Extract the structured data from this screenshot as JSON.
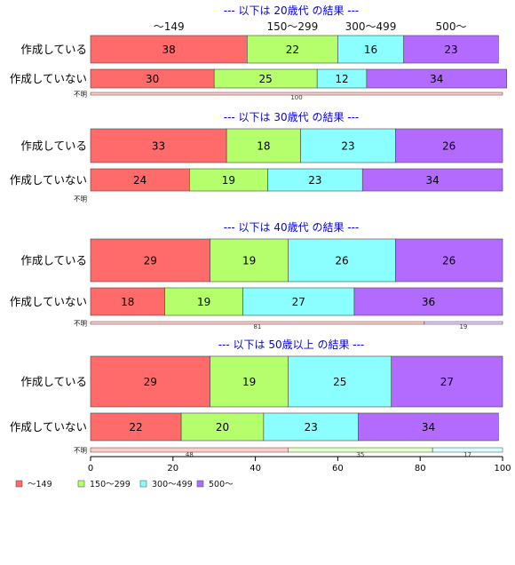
{
  "chart_data": {
    "type": "bar",
    "orientation": "horizontal",
    "stacked": true,
    "percent": true,
    "xlim": [
      0,
      100
    ],
    "xticks": [
      0,
      20,
      40,
      60,
      80,
      100
    ],
    "category_header": [
      "～149",
      "150～299",
      "300～499",
      "500～"
    ],
    "series": [
      {
        "name": "～149",
        "color": "#ff6b6b"
      },
      {
        "name": "150～299",
        "color": "#b4ff6b"
      },
      {
        "name": "300～499",
        "color": "#8bffff"
      },
      {
        "name": "500～",
        "color": "#b36bff"
      }
    ],
    "panels": [
      {
        "title": "--- 以下は 20歳代 の結果 ---",
        "rows": [
          {
            "label": "作成している",
            "size": "large",
            "values": [
              38,
              22,
              16,
              23
            ]
          },
          {
            "label": "作成していない",
            "size": "medium",
            "values": [
              30,
              25,
              12,
              34
            ]
          },
          {
            "label": "不明",
            "size": "small",
            "values": [
              100,
              0,
              0,
              0
            ]
          }
        ]
      },
      {
        "title": "--- 以下は 30歳代 の結果 ---",
        "rows": [
          {
            "label": "作成している",
            "size": "large",
            "values": [
              33,
              18,
              23,
              26
            ]
          },
          {
            "label": "作成していない",
            "size": "medium",
            "values": [
              24,
              19,
              23,
              34
            ]
          },
          {
            "label": "不明",
            "size": "small",
            "values": [
              0,
              0,
              0,
              0
            ]
          }
        ]
      },
      {
        "title": "--- 以下は 40歳代 の結果 ---",
        "rows": [
          {
            "label": "作成している",
            "size": "large",
            "values": [
              29,
              19,
              26,
              26
            ]
          },
          {
            "label": "作成していない",
            "size": "medium",
            "values": [
              18,
              19,
              27,
              36
            ]
          },
          {
            "label": "不明",
            "size": "small",
            "values": [
              81,
              0,
              0,
              19
            ]
          }
        ]
      },
      {
        "title": "--- 以下は 50歳以上 の結果 ---",
        "rows": [
          {
            "label": "作成している",
            "size": "large",
            "values": [
              29,
              19,
              25,
              27
            ]
          },
          {
            "label": "作成していない",
            "size": "medium",
            "values": [
              22,
              20,
              23,
              34
            ]
          },
          {
            "label": "不明",
            "size": "small",
            "values": [
              48,
              35,
              17,
              0
            ]
          }
        ]
      }
    ],
    "legend_position": "bottom-left"
  }
}
